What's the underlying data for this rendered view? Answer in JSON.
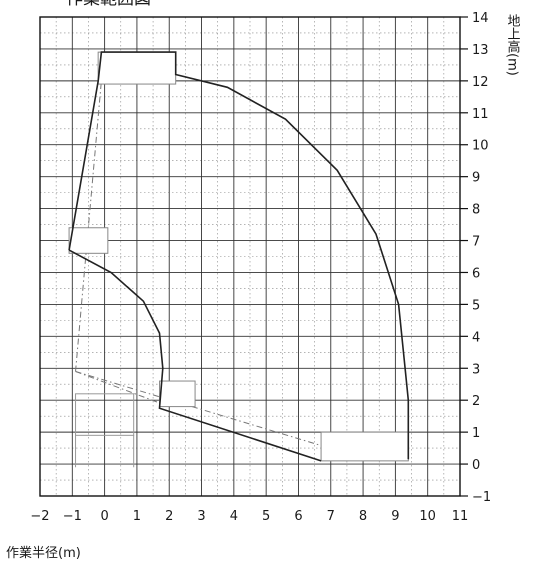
{
  "chart_data": {
    "type": "line",
    "title": "作業範囲図",
    "xlabel": "作業半径(m)",
    "ylabel": "地上高(m)",
    "xlim": [
      -2,
      11
    ],
    "ylim": [
      -1,
      14
    ],
    "x_ticks": [
      -2,
      -1,
      0,
      1,
      2,
      3,
      4,
      5,
      6,
      7,
      8,
      9,
      10,
      11
    ],
    "y_ticks": [
      -1,
      0,
      1,
      2,
      3,
      4,
      5,
      6,
      7,
      8,
      9,
      10,
      11,
      12,
      13,
      14
    ],
    "grid": true,
    "series": [
      {
        "role": "outer-envelope",
        "points": [
          [
            -1.1,
            6.7
          ],
          [
            -0.2,
            12.0
          ],
          [
            -0.1,
            12.9
          ],
          [
            2.2,
            12.9
          ],
          [
            2.2,
            12.2
          ],
          [
            3.8,
            11.8
          ],
          [
            5.6,
            10.8
          ],
          [
            7.2,
            9.2
          ],
          [
            8.4,
            7.2
          ],
          [
            9.1,
            5.0
          ],
          [
            9.3,
            3.0
          ],
          [
            9.4,
            2.0
          ],
          [
            9.4,
            0.15
          ]
        ]
      },
      {
        "role": "inner-envelope",
        "points": [
          [
            -1.1,
            6.7
          ],
          [
            0.2,
            6.0
          ],
          [
            1.2,
            5.1
          ],
          [
            1.7,
            4.1
          ],
          [
            1.8,
            3.0
          ],
          [
            1.7,
            1.75
          ],
          [
            6.7,
            0.1
          ]
        ]
      }
    ]
  }
}
